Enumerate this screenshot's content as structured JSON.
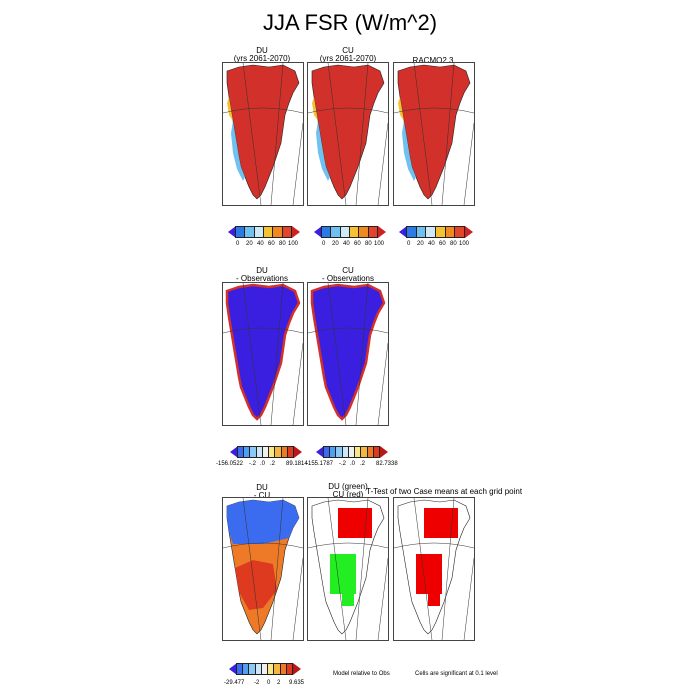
{
  "title": "JJA FSR (W/m^2)",
  "row1": {
    "panels": [
      {
        "label1": "DU",
        "label2": "(yrs 2061-2070)"
      },
      {
        "label1": "CU",
        "label2": "(yrs 2061-2070)"
      },
      {
        "label1": "RACMO2.3",
        "label2": ""
      }
    ],
    "colorbar_ticks": [
      "0",
      "20",
      "40",
      "60",
      "80",
      "100"
    ]
  },
  "row2": {
    "panels": [
      {
        "label1": "DU",
        "label2": "- Observations"
      },
      {
        "label1": "CU",
        "label2": "- Observations"
      }
    ],
    "colorbar1": {
      "min": "-156.0522",
      "mid": [
        "-.2",
        ".0",
        ".2"
      ],
      "max": "89.1814"
    },
    "colorbar2": {
      "min": "-155.1787",
      "mid": [
        "-.2",
        ".0",
        ".2"
      ],
      "max": "82.7338"
    }
  },
  "row3": {
    "panel1": {
      "label1": "DU",
      "label2": "- CU"
    },
    "panel2": {
      "label1": "DU (green)",
      "label2": "CU (red)"
    },
    "ttest_label": "T-Test of two Case means at each grid point",
    "colorbar": {
      "min": "-29.477",
      "mid": [
        "-2",
        "0",
        "2"
      ],
      "max": "9.635"
    },
    "note_model": "Model relative to Obs",
    "note_cells": "Cells are significant at 0.1 level"
  },
  "colors": {
    "abs_scale": [
      "#3a1fe0",
      "#2b7ae6",
      "#6fc2f0",
      "#cfeaf7",
      "#f6c232",
      "#f08a20",
      "#e4452a",
      "#cc2222"
    ],
    "diff_scale": [
      "#3a1fe0",
      "#3b6cf0",
      "#4fa0f2",
      "#8cc8f5",
      "#cde7f8",
      "#f0f0f0",
      "#f8e68a",
      "#f5b640",
      "#ee7a28",
      "#dd3a20",
      "#b81818"
    ],
    "greenland_red": "#d2302a",
    "greenland_blue": "#3a1fe0",
    "sig_green": "#22ee22",
    "sig_red": "#ee0000"
  }
}
